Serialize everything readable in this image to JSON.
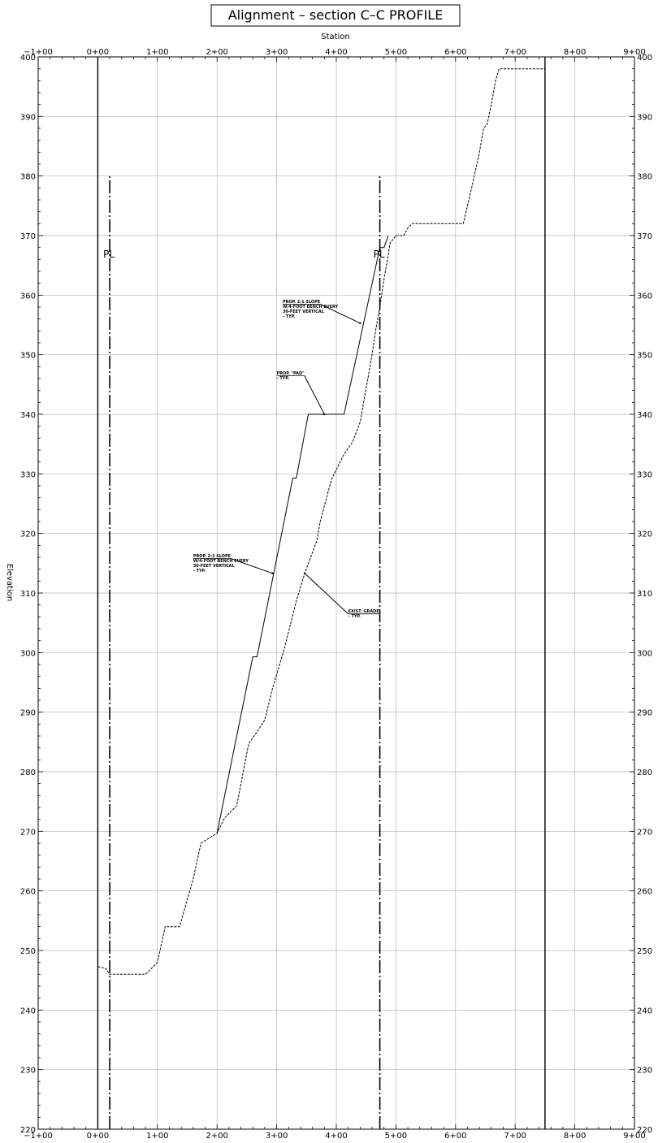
{
  "chart_data": {
    "type": "line",
    "title": "Alignment – section C–C PROFILE",
    "xlabel": "Station",
    "ylabel": "Elevation",
    "xlim": [
      -100,
      900
    ],
    "ylim": [
      220,
      400
    ],
    "x_ticks": [
      -100,
      0,
      100,
      200,
      300,
      400,
      500,
      600,
      700,
      800,
      900
    ],
    "x_tick_labels": [
      "−1+00",
      "0+00",
      "1+00",
      "2+00",
      "3+00",
      "4+00",
      "5+00",
      "6+00",
      "7+00",
      "8+00",
      "9+00"
    ],
    "y_ticks": [
      220,
      230,
      240,
      250,
      260,
      270,
      280,
      290,
      300,
      310,
      320,
      330,
      340,
      350,
      360,
      370,
      380,
      390,
      400
    ],
    "grid": true,
    "property_line_label": "PL",
    "series": [
      {
        "style": "dashed",
        "points": [
          [
            0,
            247.3
          ],
          [
            13,
            247
          ],
          [
            20,
            246
          ],
          [
            80,
            246
          ],
          [
            100,
            248
          ],
          [
            113,
            254
          ],
          [
            137,
            254
          ],
          [
            160,
            262
          ],
          [
            173,
            268
          ],
          [
            200,
            269.7
          ],
          [
            213,
            272.3
          ],
          [
            233,
            274.3
          ],
          [
            253,
            284.7
          ],
          [
            267,
            286.7
          ],
          [
            280,
            288.7
          ],
          [
            293,
            294
          ],
          [
            313,
            300.7
          ],
          [
            333,
            308.7
          ],
          [
            347,
            313.3
          ],
          [
            367,
            318.7
          ],
          [
            373,
            322
          ],
          [
            387,
            327.3
          ],
          [
            393,
            329.3
          ],
          [
            400,
            330.7
          ],
          [
            413,
            333.3
          ],
          [
            427,
            335.3
          ],
          [
            440,
            338.7
          ],
          [
            447,
            342.7
          ],
          [
            453,
            346
          ],
          [
            460,
            350
          ],
          [
            467,
            354.7
          ],
          [
            473,
            358
          ],
          [
            480,
            362.7
          ],
          [
            487,
            366.7
          ],
          [
            490,
            368.7
          ],
          [
            500,
            370
          ],
          [
            513,
            370
          ],
          [
            520,
            371.3
          ],
          [
            527,
            372
          ],
          [
            613,
            372
          ],
          [
            627,
            378
          ],
          [
            640,
            384
          ],
          [
            647,
            388
          ],
          [
            653,
            388.7
          ],
          [
            660,
            392
          ],
          [
            667,
            396
          ],
          [
            673,
            398
          ],
          [
            750,
            398
          ]
        ]
      },
      {
        "style": "solid",
        "points": [
          [
            200,
            269.7
          ],
          [
            260,
            299.3
          ],
          [
            267,
            299.3
          ],
          [
            327,
            329.3
          ],
          [
            333,
            329.3
          ],
          [
            353,
            340
          ],
          [
            413,
            340
          ],
          [
            473,
            368
          ],
          [
            480,
            368
          ],
          [
            487,
            370
          ]
        ]
      }
    ],
    "vertical_lines": [
      {
        "x": 0,
        "style": "solid",
        "y": [
          220,
          400
        ]
      },
      {
        "x": 750,
        "style": "solid",
        "y": [
          220,
          400
        ]
      },
      {
        "x": 20,
        "style": "dashdot",
        "y": [
          220,
          380
        ]
      },
      {
        "x": 473,
        "style": "dashdot",
        "y": [
          220,
          380
        ]
      }
    ],
    "annotations": [
      {
        "id": "slope-upper",
        "lines": [
          "PROP. 2:1 SLOPE",
          "W/4-FOOT BENCH EVERY",
          "30-FEET VERTICAL",
          "- TYP."
        ],
        "anchor": [
          310,
          358.7
        ],
        "leader_to": [
          440,
          355.3
        ]
      },
      {
        "id": "pad",
        "lines": [
          "PROP. \"PAD\"",
          "- TYP."
        ],
        "anchor": [
          300,
          346.7
        ],
        "leader_to": [
          380,
          340
        ]
      },
      {
        "id": "slope-lower",
        "lines": [
          "PROP. 2:1 SLOPE",
          "W/4-FOOT BENCH EVERY",
          "30-FEET VERTICAL",
          "- TYP."
        ],
        "anchor": [
          160,
          316
        ],
        "leader_to": [
          293,
          313.3
        ]
      },
      {
        "id": "exist-grade",
        "lines": [
          "EXIST. GRADE",
          "- TYP."
        ],
        "anchor": [
          420,
          306.7
        ],
        "leader_to": [
          347,
          313.3
        ]
      }
    ]
  }
}
